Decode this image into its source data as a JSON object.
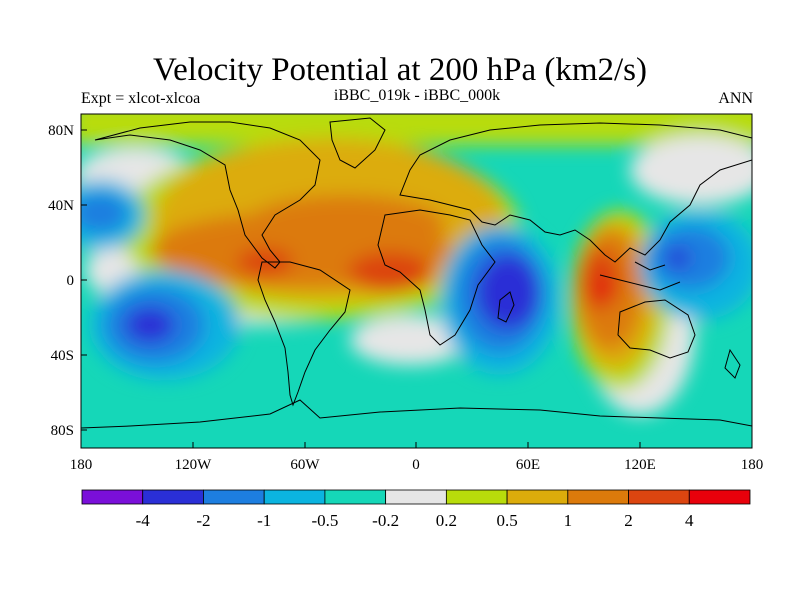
{
  "title": "Velocity Potential at 200 hPa (km2/s)",
  "left_subtitle": "Expt = xlcot-xlcoa",
  "center_subtitle": "iBBC_019k - iBBC_000k",
  "right_subtitle": "ANN",
  "axes": {
    "x_ticks": [
      "180",
      "120W",
      "60W",
      "0",
      "60E",
      "120E",
      "180"
    ],
    "y_ticks": [
      "80N",
      "40N",
      "0",
      "40S",
      "80S"
    ]
  },
  "colorbar": {
    "colors": [
      "#7a0fd9",
      "#2a2fd6",
      "#1d7ee0",
      "#0bb4e0",
      "#15d7b8",
      "#e6e6e6",
      "#b8dc0b",
      "#dcac0b",
      "#dc7a0b",
      "#dc4510",
      "#e8000b"
    ],
    "labels": [
      "-4",
      "-2",
      "-1",
      "-0.5",
      "-0.2",
      "0.2",
      "0.5",
      "1",
      "2",
      "4"
    ]
  }
}
